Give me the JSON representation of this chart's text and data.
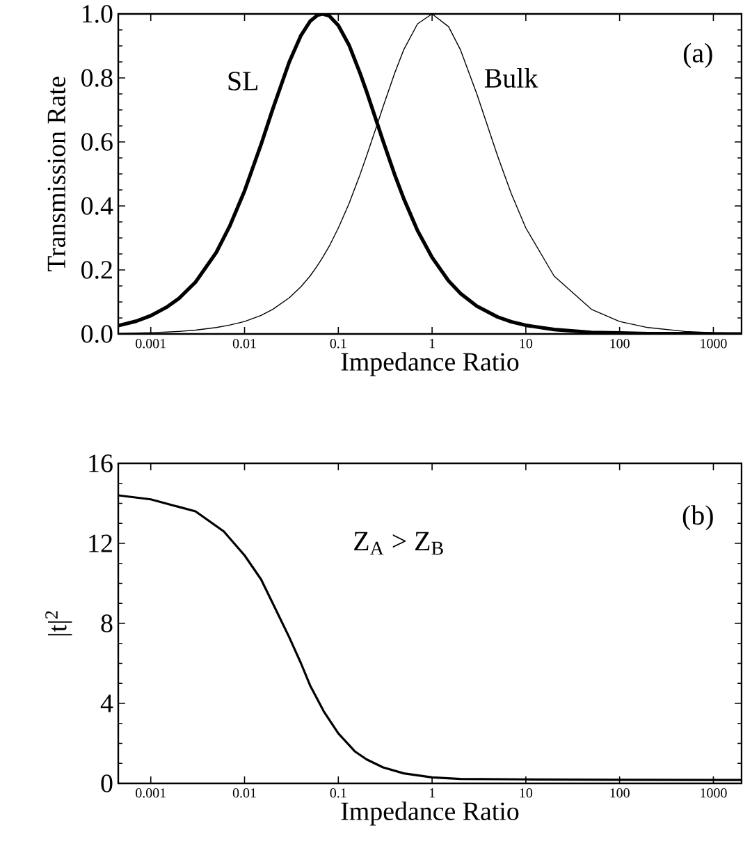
{
  "chart_data": [
    {
      "type": "line",
      "xlabel": "Impedance Ratio",
      "ylabel": "Transmission Rate",
      "log": "x",
      "xlim": [
        0.00045,
        2000
      ],
      "ylim": [
        0,
        1.0
      ],
      "xticks": [
        0.001,
        0.01,
        0.1,
        1,
        10,
        100,
        1000
      ],
      "yticks": [
        {
          "value": 0,
          "label": "0.0"
        },
        0.2,
        0.4,
        0.6,
        0.8,
        {
          "value": 1,
          "label": "1.0"
        }
      ],
      "grid": false,
      "legend": false,
      "annotations": [
        "(a)"
      ],
      "x": [
        0.00045,
        0.0007,
        0.001,
        0.0015,
        0.002,
        0.003,
        0.005,
        0.007,
        0.01,
        0.015,
        0.02,
        0.03,
        0.04,
        0.05,
        0.06,
        0.068,
        0.08,
        0.1,
        0.13,
        0.17,
        0.2,
        0.26,
        0.3,
        0.4,
        0.5,
        0.7,
        1,
        1.5,
        2,
        3,
        5,
        7,
        10,
        20,
        50,
        100,
        200,
        500,
        1000,
        2000
      ],
      "series": [
        {
          "name": "SL",
          "color": "#000000",
          "values": [
            0.026,
            0.04,
            0.057,
            0.085,
            0.111,
            0.162,
            0.255,
            0.339,
            0.447,
            0.592,
            0.703,
            0.85,
            0.933,
            0.977,
            0.996,
            1.0,
            0.994,
            0.964,
            0.903,
            0.816,
            0.758,
            0.658,
            0.603,
            0.497,
            0.422,
            0.323,
            0.239,
            0.166,
            0.127,
            0.087,
            0.053,
            0.038,
            0.027,
            0.014,
            0.005,
            0.003,
            0.001,
            0.001,
            0.0,
            0.0
          ]
        },
        {
          "name": "Bulk",
          "color": "#000000",
          "values": [
            0.002,
            0.003,
            0.004,
            0.006,
            0.008,
            0.012,
            0.02,
            0.028,
            0.039,
            0.058,
            0.077,
            0.113,
            0.148,
            0.181,
            0.214,
            0.239,
            0.274,
            0.331,
            0.407,
            0.497,
            0.556,
            0.655,
            0.71,
            0.816,
            0.889,
            0.969,
            1.0,
            0.96,
            0.889,
            0.75,
            0.556,
            0.438,
            0.331,
            0.181,
            0.077,
            0.039,
            0.02,
            0.008,
            0.004,
            0.002
          ]
        }
      ]
    },
    {
      "type": "line",
      "xlabel": "Impedance Ratio",
      "ylabel": "|t|$^{2}$",
      "log": "x",
      "xlim": [
        0.00045,
        2000
      ],
      "ylim": [
        0,
        16
      ],
      "xticks": [
        0.001,
        0.01,
        0.1,
        1,
        10,
        100,
        1000
      ],
      "yticks": [
        0,
        4,
        8,
        12,
        16
      ],
      "grid": false,
      "legend": false,
      "annotations": [
        "Z$_{A}$ > Z$_{B}$",
        "(b)"
      ],
      "x": [
        0.00045,
        0.001,
        0.003,
        0.006,
        0.01,
        0.015,
        0.02,
        0.03,
        0.04,
        0.05,
        0.07,
        0.1,
        0.15,
        0.2,
        0.3,
        0.5,
        1,
        2,
        10,
        100,
        1000,
        2000
      ],
      "series": [
        {
          "color": "#000000",
          "values": [
            14.4,
            14.2,
            13.6,
            12.6,
            11.4,
            10.2,
            9.0,
            7.3,
            6.0,
            4.9,
            3.6,
            2.5,
            1.6,
            1.2,
            0.8,
            0.5,
            0.3,
            0.22,
            0.2,
            0.18,
            0.17,
            0.17
          ]
        }
      ]
    }
  ]
}
